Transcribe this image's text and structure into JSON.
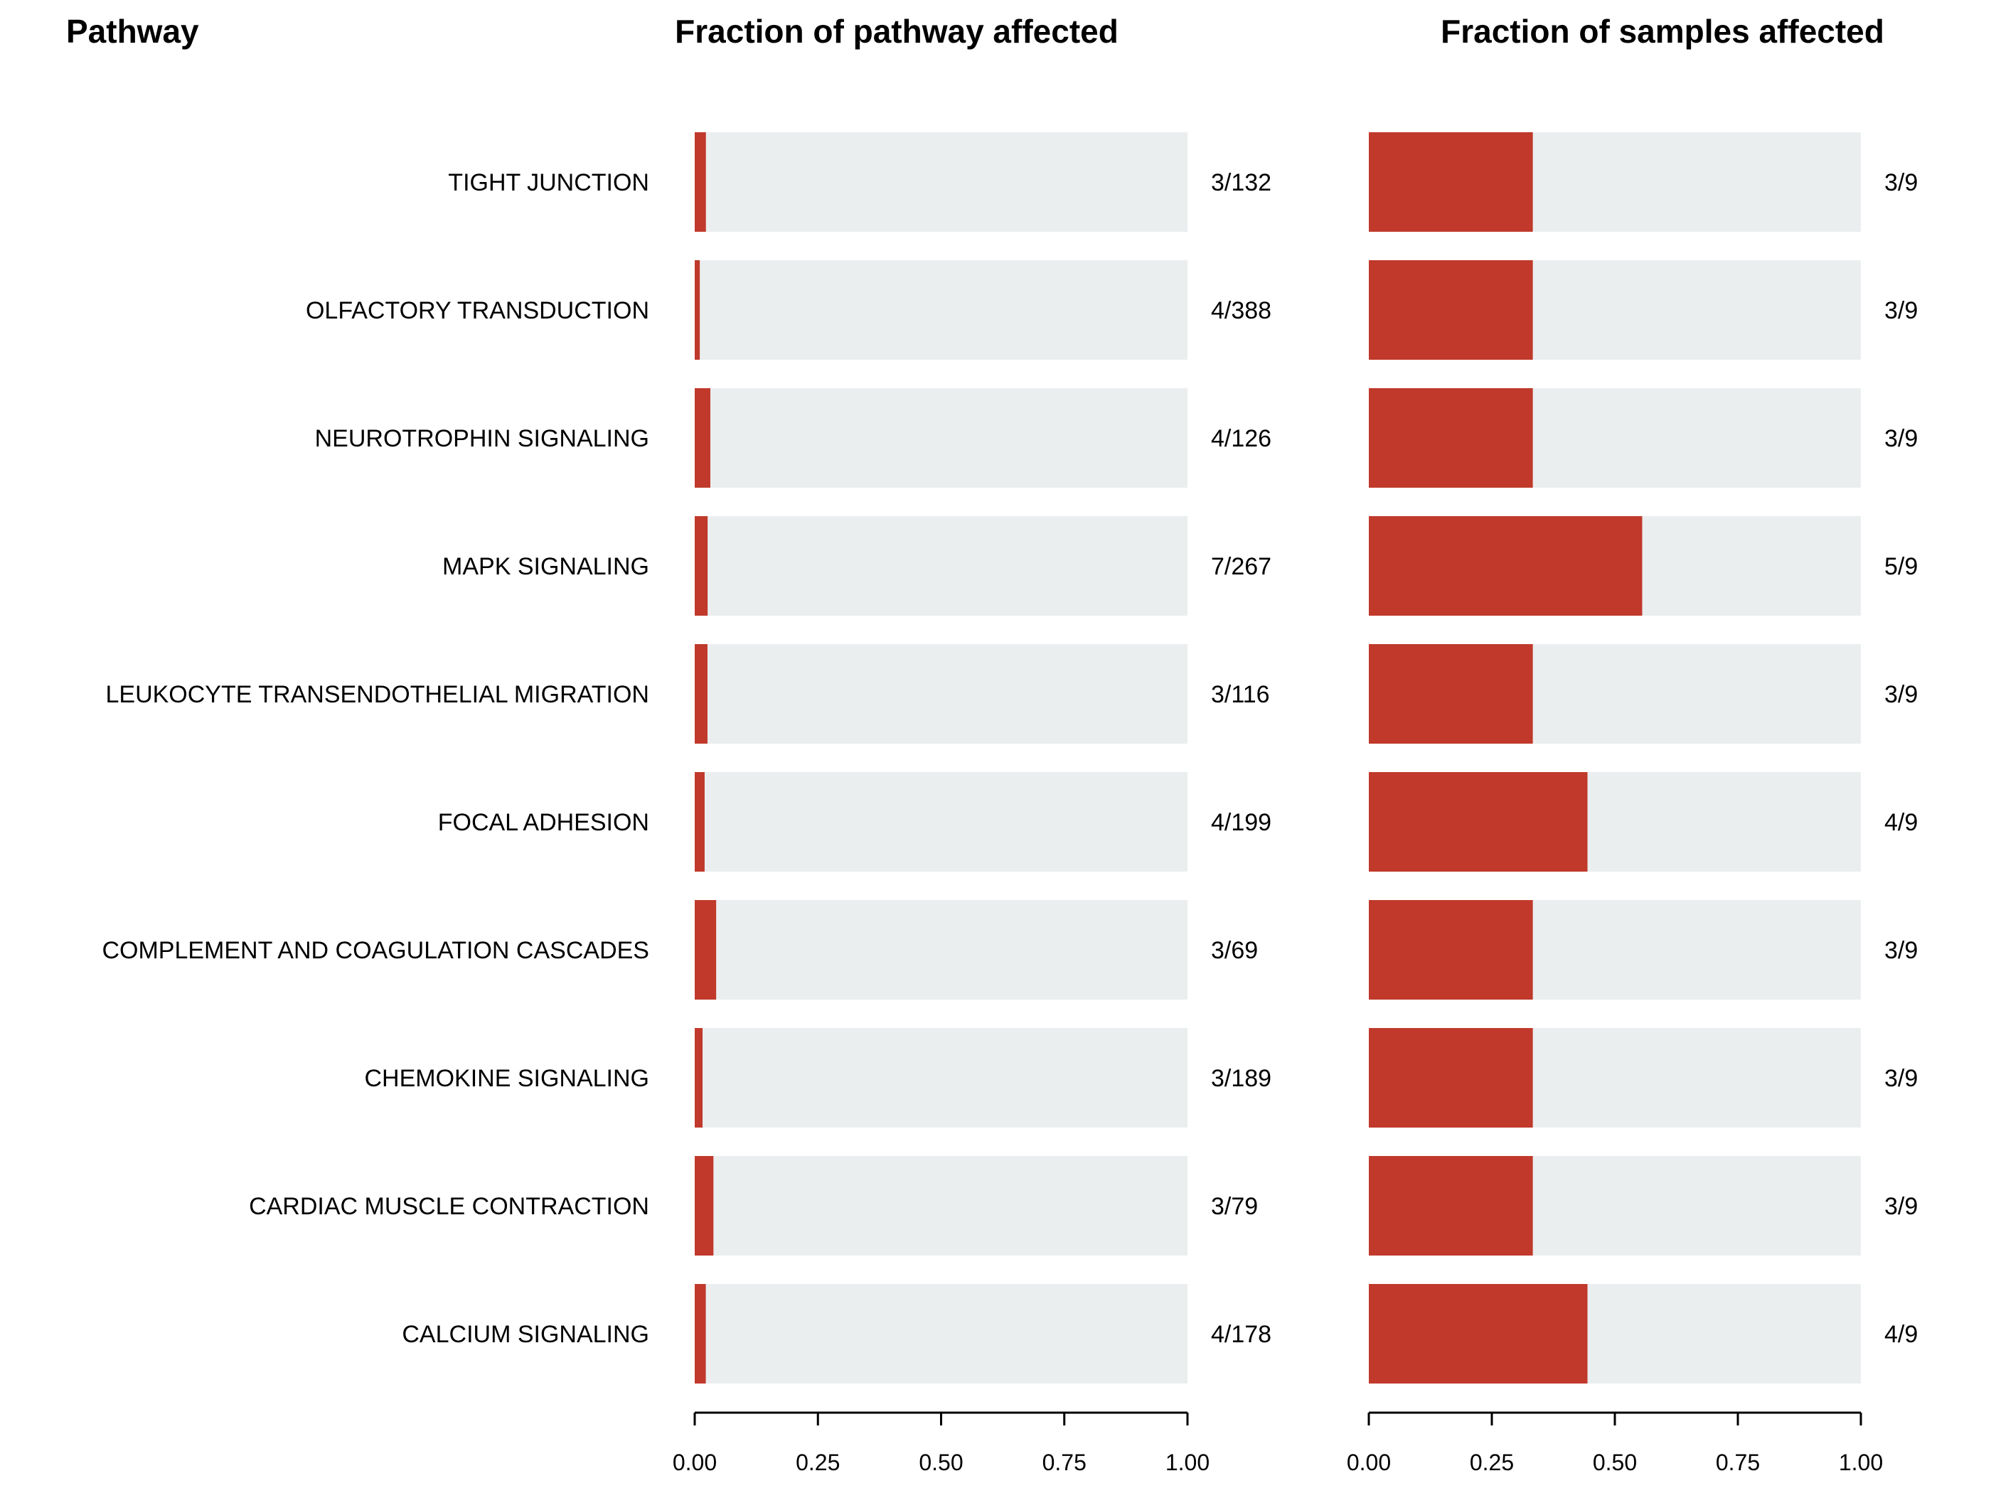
{
  "chart_data": {
    "type": "bar",
    "headers": {
      "pathway": "Pathway",
      "left": "Fraction of pathway affected",
      "right": "Fraction of samples affected"
    },
    "colors": {
      "fill": "#c0392b",
      "background": "#ebeeef",
      "axis": "#000000"
    },
    "xlim": [
      0,
      1
    ],
    "ticks": [
      "0.00",
      "0.25",
      "0.50",
      "0.75",
      "1.00"
    ],
    "tick_values": [
      0,
      0.25,
      0.5,
      0.75,
      1.0
    ],
    "rows": [
      {
        "pathway": "TIGHT JUNCTION",
        "left_label": "3/132",
        "left_value": 0.0227,
        "right_label": "3/9",
        "right_value": 0.3333
      },
      {
        "pathway": "OLFACTORY TRANSDUCTION",
        "left_label": "4/388",
        "left_value": 0.0103,
        "right_label": "3/9",
        "right_value": 0.3333
      },
      {
        "pathway": "NEUROTROPHIN SIGNALING",
        "left_label": "4/126",
        "left_value": 0.0317,
        "right_label": "3/9",
        "right_value": 0.3333
      },
      {
        "pathway": "MAPK SIGNALING",
        "left_label": "7/267",
        "left_value": 0.0262,
        "right_label": "5/9",
        "right_value": 0.5556
      },
      {
        "pathway": "LEUKOCYTE TRANSENDOTHELIAL MIGRATION",
        "left_label": "3/116",
        "left_value": 0.0259,
        "right_label": "3/9",
        "right_value": 0.3333
      },
      {
        "pathway": "FOCAL ADHESION",
        "left_label": "4/199",
        "left_value": 0.0201,
        "right_label": "4/9",
        "right_value": 0.4444
      },
      {
        "pathway": "COMPLEMENT AND COAGULATION CASCADES",
        "left_label": "3/69",
        "left_value": 0.0435,
        "right_label": "3/9",
        "right_value": 0.3333
      },
      {
        "pathway": "CHEMOKINE SIGNALING",
        "left_label": "3/189",
        "left_value": 0.0159,
        "right_label": "3/9",
        "right_value": 0.3333
      },
      {
        "pathway": "CARDIAC MUSCLE CONTRACTION",
        "left_label": "3/79",
        "left_value": 0.038,
        "right_label": "3/9",
        "right_value": 0.3333
      },
      {
        "pathway": "CALCIUM SIGNALING",
        "left_label": "4/178",
        "left_value": 0.0225,
        "right_label": "4/9",
        "right_value": 0.4444
      }
    ]
  }
}
